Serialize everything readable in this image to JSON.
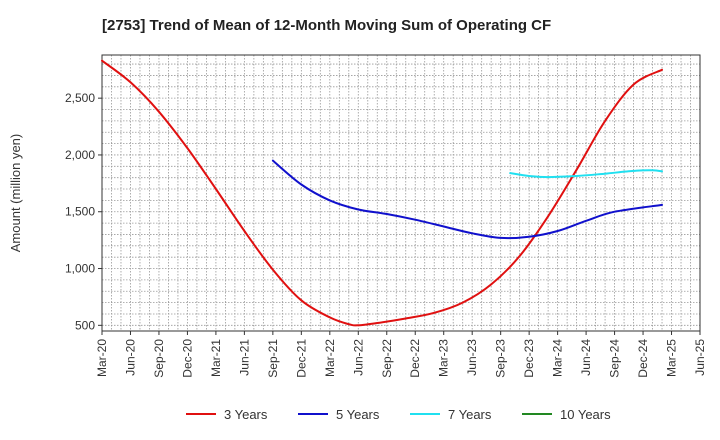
{
  "chart_data": {
    "type": "line",
    "title": "[2753]  Trend of Mean of 12-Month Moving Sum of Operating CF",
    "xlabel": "",
    "ylabel": "Amount (million yen)",
    "ylim": [
      450,
      2880
    ],
    "yticks": [
      500,
      1000,
      1500,
      2000,
      2500
    ],
    "ytick_labels": [
      "500",
      "1,000",
      "1,500",
      "2,000",
      "2,500"
    ],
    "x_tick_labels": [
      "Mar-20",
      "Jun-20",
      "Sep-20",
      "Dec-20",
      "Mar-21",
      "Jun-21",
      "Sep-21",
      "Dec-21",
      "Mar-22",
      "Jun-22",
      "Sep-22",
      "Dec-22",
      "Mar-23",
      "Jun-23",
      "Sep-23",
      "Dec-23",
      "Mar-24",
      "Jun-24",
      "Sep-24",
      "Dec-24",
      "Mar-25",
      "Jun-25"
    ],
    "x_month_count": 63,
    "grid": true,
    "legend_position": "bottom",
    "series": [
      {
        "name": "3 Years",
        "color": "#e01010",
        "points": [
          [
            0,
            2830
          ],
          [
            3,
            2640
          ],
          [
            6,
            2380
          ],
          [
            9,
            2060
          ],
          [
            12,
            1700
          ],
          [
            15,
            1330
          ],
          [
            18,
            990
          ],
          [
            21,
            720
          ],
          [
            24,
            570
          ],
          [
            26,
            510
          ],
          [
            27,
            500
          ],
          [
            29,
            520
          ],
          [
            32,
            560
          ],
          [
            35,
            610
          ],
          [
            38,
            700
          ],
          [
            41,
            860
          ],
          [
            44,
            1110
          ],
          [
            47,
            1460
          ],
          [
            50,
            1870
          ],
          [
            53,
            2300
          ],
          [
            56,
            2620
          ],
          [
            59,
            2750
          ]
        ]
      },
      {
        "name": "5 Years",
        "color": "#1010cc",
        "points": [
          [
            18,
            1950
          ],
          [
            21,
            1740
          ],
          [
            24,
            1600
          ],
          [
            27,
            1520
          ],
          [
            30,
            1480
          ],
          [
            33,
            1430
          ],
          [
            36,
            1370
          ],
          [
            39,
            1310
          ],
          [
            42,
            1270
          ],
          [
            45,
            1280
          ],
          [
            48,
            1330
          ],
          [
            51,
            1420
          ],
          [
            54,
            1500
          ],
          [
            59,
            1560
          ]
        ]
      },
      {
        "name": "7 Years",
        "color": "#20e0f0",
        "points": [
          [
            43,
            1840
          ],
          [
            45,
            1815
          ],
          [
            47,
            1805
          ],
          [
            50,
            1815
          ],
          [
            53,
            1835
          ],
          [
            56,
            1860
          ],
          [
            58,
            1865
          ],
          [
            59,
            1855
          ]
        ]
      },
      {
        "name": "10 Years",
        "color": "#228822",
        "points": []
      }
    ]
  }
}
